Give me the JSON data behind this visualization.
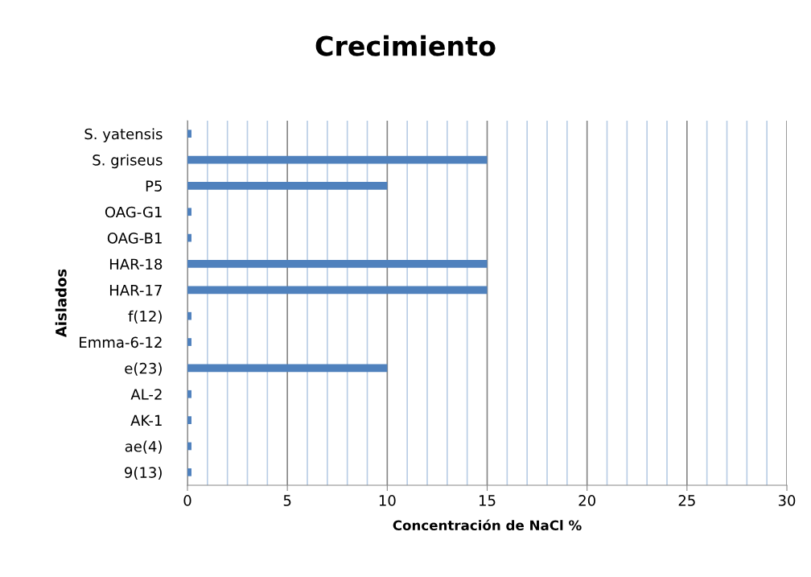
{
  "chart_data": {
    "type": "bar",
    "orientation": "horizontal",
    "title": "Crecimiento",
    "xlabel": "Concentración de NaCl %",
    "ylabel": "Aislados",
    "categories": [
      "S. yatensis",
      "S. griseus",
      "P5",
      "OAG-G1",
      "OAG-B1",
      "HAR-18",
      "HAR-17",
      "f(12)",
      "Emma-6-12",
      "e(23)",
      "AL-2",
      "AK-1",
      "ae(4)",
      "9(13)"
    ],
    "values": [
      0.2,
      15,
      10,
      0.2,
      0.2,
      15,
      15,
      0.2,
      0.2,
      10,
      0.2,
      0.2,
      0.2,
      0.2
    ],
    "color": "#4f81bd",
    "xlim": [
      0,
      30
    ],
    "xticks": [
      0,
      {
        "value": 1,
        "label": null
      },
      {
        "value": 2,
        "label": null
      },
      {
        "value": 3,
        "label": null
      },
      {
        "value": 4,
        "label": null
      },
      5,
      {
        "value": 6,
        "label": null
      },
      {
        "value": 7,
        "label": null
      },
      {
        "value": 8,
        "label": null
      },
      {
        "value": 9,
        "label": null
      },
      10,
      {
        "value": 11,
        "label": null
      },
      {
        "value": 12,
        "label": null
      },
      {
        "value": 13,
        "label": null
      },
      {
        "value": 14,
        "label": null
      },
      15,
      {
        "value": 16,
        "label": null
      },
      {
        "value": 17,
        "label": null
      },
      {
        "value": 18,
        "label": null
      },
      {
        "value": 19,
        "label": null
      },
      20,
      {
        "value": 21,
        "label": null
      },
      {
        "value": 22,
        "label": null
      },
      {
        "value": 23,
        "label": null
      },
      {
        "value": 24,
        "label": null
      },
      25,
      {
        "value": 26,
        "label": null
      },
      {
        "value": 27,
        "label": null
      },
      {
        "value": 28,
        "label": null
      },
      {
        "value": 29,
        "label": null
      },
      30
    ],
    "grid": "x",
    "legend": false
  }
}
